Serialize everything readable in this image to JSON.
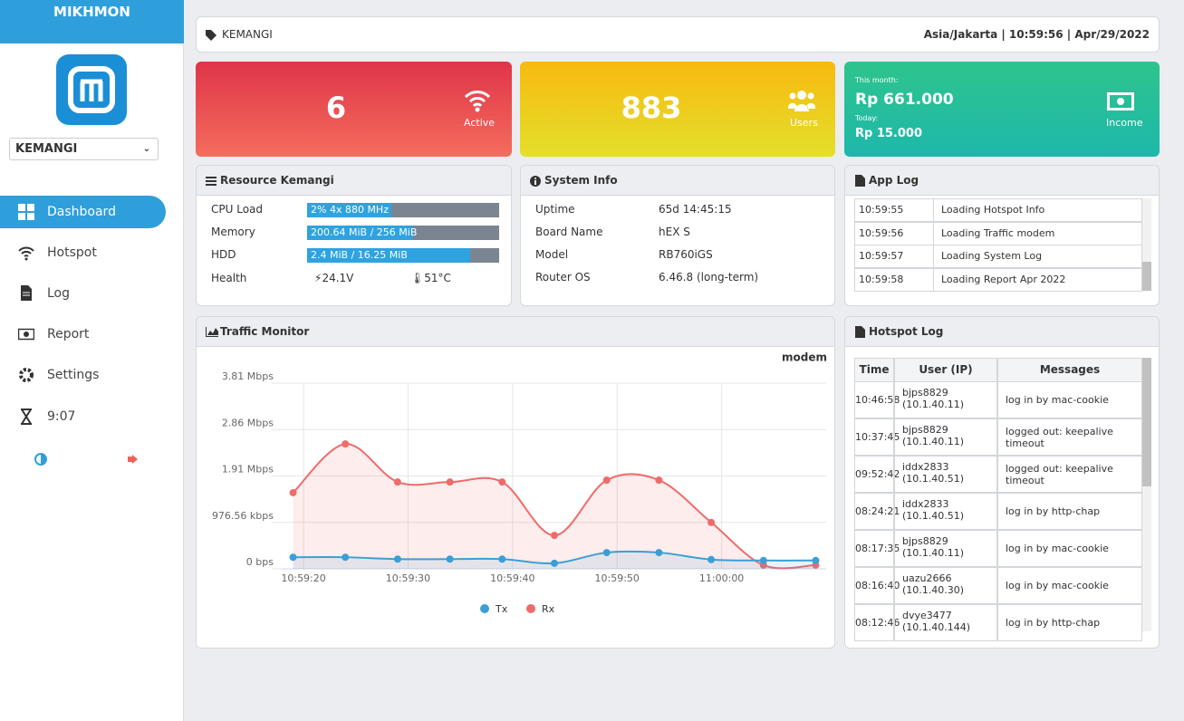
{
  "sidebar": {
    "brand": "MIKHMON",
    "router": "KEMANGI",
    "menu": [
      "Dashboard",
      "Hotspot",
      "Log",
      "Report",
      "Settings",
      "9:07"
    ]
  },
  "header": {
    "location": "KEMANGI",
    "datetime": "Asia/Jakarta | 10:59:56 | Apr/29/2022"
  },
  "cards": {
    "active": {
      "value": "6",
      "label": "Active"
    },
    "users": {
      "value": "883",
      "label": "Users"
    },
    "income": {
      "month_label": "This month:",
      "month_value": "Rp 661.000",
      "today_label": "Today:",
      "today_value": "Rp 15.000",
      "label": "Income"
    }
  },
  "resource": {
    "title": "Resource Kemangi",
    "rows": [
      {
        "label": "CPU Load",
        "text": "2% 4x 880 MHz",
        "fill": 44
      },
      {
        "label": "Memory",
        "text": "200.64 MiB / 256 MiB",
        "fill": 55
      },
      {
        "label": "HDD",
        "text": "2.4 MiB / 16.25 MiB",
        "fill": 85
      }
    ],
    "health": {
      "label": "Health",
      "voltage": "24.1V",
      "temperature": "51°C"
    }
  },
  "system": {
    "title": "System Info",
    "rows": [
      [
        "Uptime",
        "65d 14:45:15"
      ],
      [
        "Board Name",
        "hEX S"
      ],
      [
        "Model",
        "RB760iGS"
      ],
      [
        "Router OS",
        "6.46.8 (long-term)"
      ]
    ]
  },
  "app_log": {
    "title": "App Log",
    "rows": [
      [
        "10:59:55",
        "Loading Hotspot Info"
      ],
      [
        "10:59:56",
        "Loading Traffic modem"
      ],
      [
        "10:59:57",
        "Loading System Log"
      ],
      [
        "10:59:58",
        "Loading Report Apr 2022"
      ]
    ]
  },
  "chart_data": {
    "type": "line",
    "title": "Traffic Monitor",
    "subtitle": "modem",
    "x": [
      "10:59:19",
      "10:59:24",
      "10:59:29",
      "10:59:34",
      "10:59:39",
      "10:59:44",
      "10:59:49",
      "10:59:54",
      "10:59:59",
      "11:00:04",
      "11:00:09"
    ],
    "xlim": [
      "10:59:18",
      "11:00:10"
    ],
    "xticks": [
      "10:59:20",
      "10:59:30",
      "10:59:40",
      "10:59:50",
      "11:00:00"
    ],
    "ylim": [
      0,
      4000000
    ],
    "yticks": [
      {
        "value": 0,
        "label": "0 bps"
      },
      {
        "value": 1000000,
        "label": "976.56 kbps"
      },
      {
        "value": 2000000,
        "label": "1.91 Mbps"
      },
      {
        "value": 3000000,
        "label": "2.86 Mbps"
      },
      {
        "value": 4000000,
        "label": "3.81 Mbps"
      }
    ],
    "grid": true,
    "series": [
      {
        "name": "Tx",
        "color": "#3a9fd6",
        "values": [
          250000,
          250000,
          210000,
          210000,
          210000,
          120000,
          350000,
          350000,
          200000,
          180000,
          180000
        ]
      },
      {
        "name": "Rx",
        "color": "#f06a6a",
        "values": [
          1640000,
          2690000,
          1870000,
          1870000,
          1870000,
          720000,
          1910000,
          1910000,
          1000000,
          80000,
          80000
        ]
      }
    ]
  },
  "hotspot_log": {
    "title": "Hotspot Log",
    "columns": [
      "Time",
      "User (IP)",
      "Messages"
    ],
    "rows": [
      {
        "time": "10:46:58",
        "user": "bjps8829",
        "ip": "(10.1.40.11)",
        "message": "log in by mac-cookie"
      },
      {
        "time": "10:37:45",
        "user": "bjps8829",
        "ip": "(10.1.40.11)",
        "message": "logged out: keepalive timeout"
      },
      {
        "time": "09:52:42",
        "user": "iddx2833",
        "ip": "(10.1.40.51)",
        "message": "logged out: keepalive timeout"
      },
      {
        "time": "08:24:21",
        "user": "iddx2833",
        "ip": "(10.1.40.51)",
        "message": "log in by http-chap"
      },
      {
        "time": "08:17:35",
        "user": "bjps8829",
        "ip": "(10.1.40.11)",
        "message": "log in by mac-cookie"
      },
      {
        "time": "08:16:40",
        "user": "uazu2666",
        "ip": "(10.1.40.30)",
        "message": "log in by mac-cookie"
      },
      {
        "time": "08:12:46",
        "user": "dvye3477",
        "ip": "(10.1.40.144)",
        "message": "log in by http-chap"
      }
    ]
  }
}
